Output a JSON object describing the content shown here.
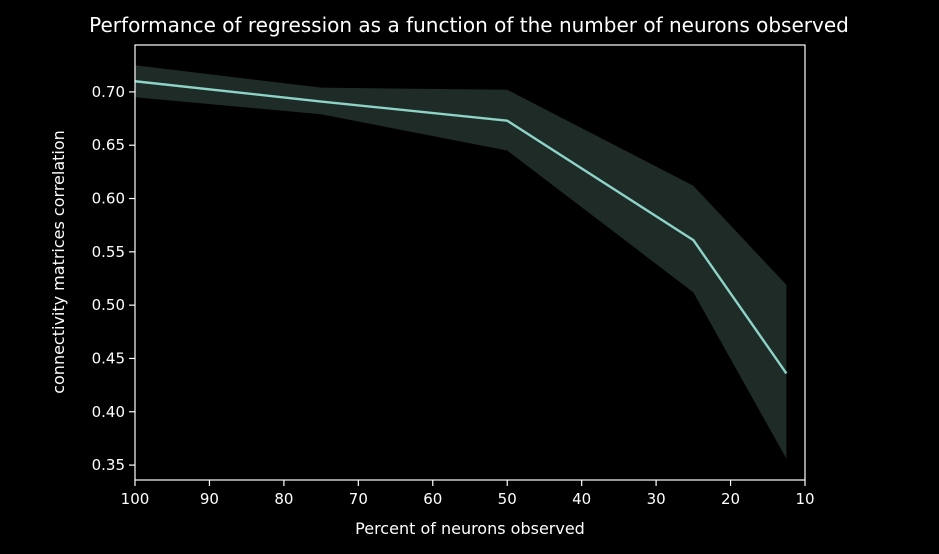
{
  "chart_data": {
    "type": "line",
    "title": "Performance of regression as a function of the number of neurons observed",
    "xlabel": "Percent of neurons observed",
    "ylabel": "connectivity matrices correlation",
    "xlim": [
      100,
      10
    ],
    "ylim": [
      0.336,
      0.744
    ],
    "x_reversed": true,
    "grid": false,
    "x_ticks": [
      100,
      90,
      80,
      70,
      60,
      50,
      40,
      30,
      20,
      10
    ],
    "y_ticks": [
      0.35,
      0.4,
      0.45,
      0.5,
      0.55,
      0.6,
      0.65,
      0.7
    ],
    "series": [
      {
        "x": [
          100,
          75,
          50,
          25,
          12.5
        ],
        "values": [
          0.71,
          0.691,
          0.673,
          0.561,
          0.436
        ],
        "lower": [
          0.695,
          0.679,
          0.645,
          0.512,
          0.356
        ],
        "upper": [
          0.725,
          0.704,
          0.702,
          0.612,
          0.519
        ],
        "color": "#8dd3c7",
        "band_color": "#1e2b27"
      }
    ],
    "colors": {
      "background": "#000000",
      "axes": "#ffffff",
      "text": "#ffffff"
    }
  }
}
